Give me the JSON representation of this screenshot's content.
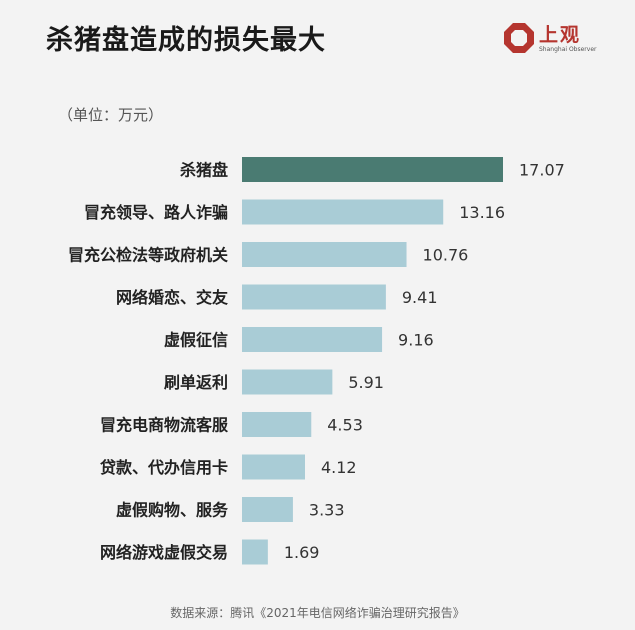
{
  "header": {
    "title": "杀猪盘造成的损失最大",
    "unit": "（单位：万元）"
  },
  "logo": {
    "name": "上观",
    "subtitle": "Shanghai Observer",
    "icon": "octagon-ring-logo",
    "color": "#b5352f"
  },
  "source": "数据来源：腾讯《2021年电信网络诈骗治理研究报告》",
  "colors": {
    "highlight_bar": "#4a7b72",
    "bar": "#a9ccd6"
  },
  "chart_data": {
    "type": "bar",
    "orientation": "horizontal",
    "categories": [
      "杀猪盘",
      "冒充领导、路人诈骗",
      "冒充公检法等政府机关",
      "网络婚恋、交友",
      "虚假征信",
      "刷单返利",
      "冒充电商物流客服",
      "贷款、代办信用卡",
      "虚假购物、服务",
      "网络游戏虚假交易"
    ],
    "values": [
      17.07,
      13.16,
      10.76,
      9.41,
      9.16,
      5.91,
      4.53,
      4.12,
      3.33,
      1.69
    ],
    "value_labels": [
      "17.07",
      "13.16",
      "10.76",
      "9.41",
      "9.16",
      "5.91",
      "4.53",
      "4.12",
      "3.33",
      "1.69"
    ],
    "highlight_index": 0,
    "title": "杀猪盘造成的损失最大",
    "xlabel": "",
    "ylabel": "",
    "xlim": [
      0,
      17.07
    ],
    "grid": false,
    "legend": "none"
  }
}
